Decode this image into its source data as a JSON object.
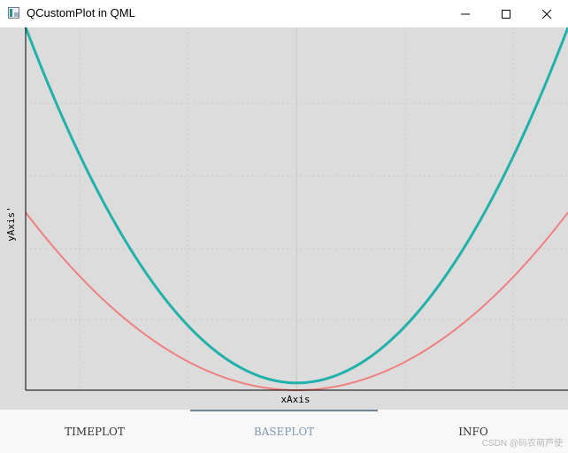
{
  "window": {
    "title": "QCustomPlot in QML"
  },
  "chart_data": {
    "type": "line",
    "xlabel": "xAxis",
    "ylabel": "yAxis'",
    "grid": true,
    "series": [
      {
        "color": "#20b2aa",
        "curve": "parabola",
        "vertex_y_fraction": 0.02,
        "edge_y_fraction": 1.0
      },
      {
        "color": "#f08080",
        "curve": "parabola",
        "vertex_y_fraction": 0.0,
        "edge_y_fraction": 0.49
      }
    ]
  },
  "tabs": [
    {
      "label": "TIMEPLOT",
      "active": false
    },
    {
      "label": "BASEPLOT",
      "active": true
    },
    {
      "label": "INFO",
      "active": false
    }
  ],
  "watermark": "CSDN @码农萌芦使",
  "icons": {
    "app": "app-window-icon",
    "minimize": "minimize-icon",
    "maximize": "maximize-icon",
    "close": "close-icon"
  }
}
